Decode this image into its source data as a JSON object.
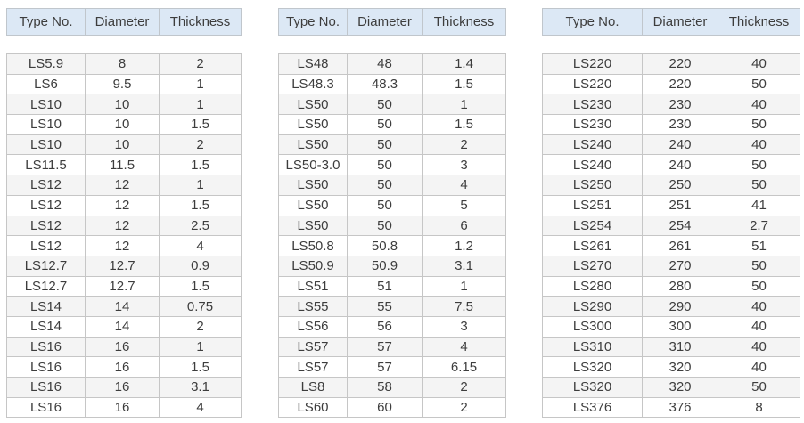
{
  "columns": [
    "Type No.",
    "Diameter",
    "Thickness"
  ],
  "tables": [
    {
      "rows": [
        [
          "LS5.9",
          "8",
          "2"
        ],
        [
          "LS6",
          "9.5",
          "1"
        ],
        [
          "LS10",
          "10",
          "1"
        ],
        [
          "LS10",
          "10",
          "1.5"
        ],
        [
          "LS10",
          "10",
          "2"
        ],
        [
          "LS11.5",
          "11.5",
          "1.5"
        ],
        [
          "LS12",
          "12",
          "1"
        ],
        [
          "LS12",
          "12",
          "1.5"
        ],
        [
          "LS12",
          "12",
          "2.5"
        ],
        [
          "LS12",
          "12",
          "4"
        ],
        [
          "LS12.7",
          "12.7",
          "0.9"
        ],
        [
          "LS12.7",
          "12.7",
          "1.5"
        ],
        [
          "LS14",
          "14",
          "0.75"
        ],
        [
          "LS14",
          "14",
          "2"
        ],
        [
          "LS16",
          "16",
          "1"
        ],
        [
          "LS16",
          "16",
          "1.5"
        ],
        [
          "LS16",
          "16",
          "3.1"
        ],
        [
          "LS16",
          "16",
          "4"
        ]
      ]
    },
    {
      "rows": [
        [
          "LS48",
          "48",
          "1.4"
        ],
        [
          "LS48.3",
          "48.3",
          "1.5"
        ],
        [
          "LS50",
          "50",
          "1"
        ],
        [
          "LS50",
          "50",
          "1.5"
        ],
        [
          "LS50",
          "50",
          "2"
        ],
        [
          "LS50-3.0",
          "50",
          "3"
        ],
        [
          "LS50",
          "50",
          "4"
        ],
        [
          "LS50",
          "50",
          "5"
        ],
        [
          "LS50",
          "50",
          "6"
        ],
        [
          "LS50.8",
          "50.8",
          "1.2"
        ],
        [
          "LS50.9",
          "50.9",
          "3.1"
        ],
        [
          "LS51",
          "51",
          "1"
        ],
        [
          "LS55",
          "55",
          "7.5"
        ],
        [
          "LS56",
          "56",
          "3"
        ],
        [
          "LS57",
          "57",
          "4"
        ],
        [
          "LS57",
          "57",
          "6.15"
        ],
        [
          "LS8",
          "58",
          "2"
        ],
        [
          "LS60",
          "60",
          "2"
        ]
      ]
    },
    {
      "rows": [
        [
          "LS220",
          "220",
          "40"
        ],
        [
          "LS220",
          "220",
          "50"
        ],
        [
          "LS230",
          "230",
          "40"
        ],
        [
          "LS230",
          "230",
          "50"
        ],
        [
          "LS240",
          "240",
          "40"
        ],
        [
          "LS240",
          "240",
          "50"
        ],
        [
          "LS250",
          "250",
          "50"
        ],
        [
          "LS251",
          "251",
          "41"
        ],
        [
          "LS254",
          "254",
          "2.7"
        ],
        [
          "LS261",
          "261",
          "51"
        ],
        [
          "LS270",
          "270",
          "50"
        ],
        [
          "LS280",
          "280",
          "50"
        ],
        [
          "LS290",
          "290",
          "40"
        ],
        [
          "LS300",
          "300",
          "40"
        ],
        [
          "LS310",
          "310",
          "40"
        ],
        [
          "LS320",
          "320",
          "40"
        ],
        [
          "LS320",
          "320",
          "50"
        ],
        [
          "LS376",
          "376",
          "8"
        ]
      ]
    }
  ],
  "colors": {
    "header_bg": "#dce8f5",
    "row_alt_bg": "#f4f4f4",
    "row_bg": "#ffffff",
    "border": "#c6c6c6",
    "text": "#3d3d3d"
  }
}
